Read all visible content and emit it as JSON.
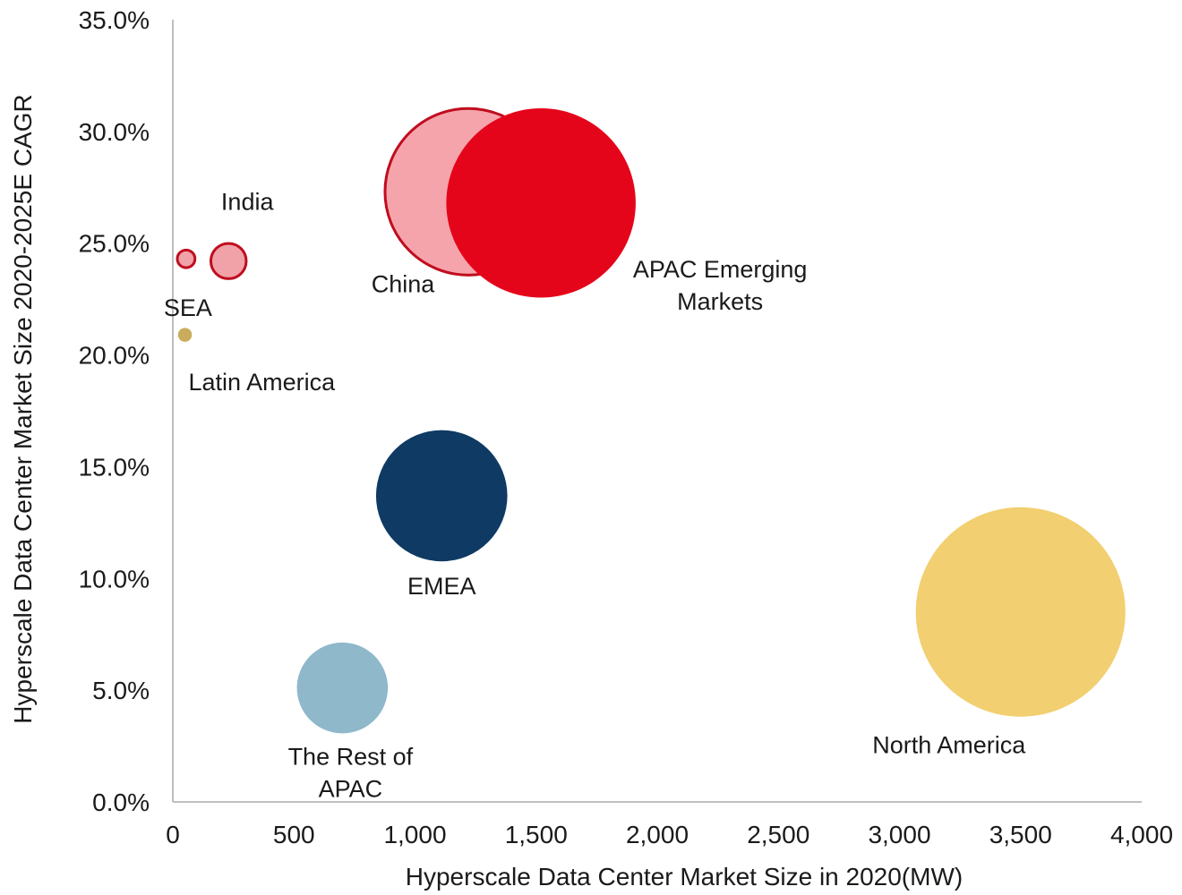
{
  "chart_data": {
    "type": "bubble",
    "xlabel": "Hyperscale Data Center Market Size in 2020(MW)",
    "ylabel": "Hyperscale Data Center Market Size 2020-2025E CAGR",
    "xlim": [
      0,
      4000
    ],
    "ylim": [
      0,
      35
    ],
    "x_ticks": [
      0,
      500,
      1000,
      1500,
      2000,
      2500,
      3000,
      3500,
      4000
    ],
    "x_tick_labels": [
      "0",
      "500",
      "1,000",
      "1,500",
      "2,000",
      "2,500",
      "3,000",
      "3,500",
      "4,000"
    ],
    "y_ticks": [
      0,
      5,
      10,
      15,
      20,
      25,
      30,
      35
    ],
    "y_tick_labels": [
      "0.0%",
      "5.0%",
      "10.0%",
      "15.0%",
      "20.0%",
      "25.0%",
      "30.0%",
      "35.0%"
    ],
    "series": [
      {
        "name": "China",
        "label_lines": [
          "China"
        ],
        "x": 1220,
        "y": 27.3,
        "size": 660,
        "color": "#ee5a67",
        "opacity": 0.55,
        "stroke": "#c00d1e",
        "label_anchor": "bottom-left"
      },
      {
        "name": "APAC Emerging Markets",
        "label_lines": [
          "APAC  Emerging",
          "Markets"
        ],
        "x": 1520,
        "y": 26.8,
        "size": 750,
        "color": "#e5051a",
        "opacity": 1,
        "stroke": "none",
        "label_anchor": "right"
      },
      {
        "name": "India",
        "label_lines": [
          "India"
        ],
        "x": 230,
        "y": 24.2,
        "size": 140,
        "color": "#f0a2a8",
        "opacity": 1,
        "stroke": "#c00d1e",
        "label_anchor": "top"
      },
      {
        "name": "SEA",
        "label_lines": [
          "SEA"
        ],
        "x": 55,
        "y": 24.3,
        "size": 70,
        "color": "#f0a2a8",
        "opacity": 1,
        "stroke": "#c00d1e",
        "label_anchor": "bottom"
      },
      {
        "name": "Latin America",
        "label_lines": [
          "Latin America"
        ],
        "x": 50,
        "y": 20.9,
        "size": 55,
        "color": "#c9ad5d",
        "opacity": 1,
        "stroke": "none",
        "label_anchor": "bottom-right"
      },
      {
        "name": "EMEA",
        "label_lines": [
          "EMEA"
        ],
        "x": 1110,
        "y": 13.7,
        "size": 520,
        "color": "#0e3a63",
        "opacity": 1,
        "stroke": "none",
        "label_anchor": "bottom"
      },
      {
        "name": "The Rest of APAC",
        "label_lines": [
          "The Rest of",
          "APAC"
        ],
        "x": 700,
        "y": 5.1,
        "size": 360,
        "color": "#8fb8cb",
        "opacity": 1,
        "stroke": "none",
        "label_anchor": "bottom"
      },
      {
        "name": "North America",
        "label_lines": [
          "North America"
        ],
        "x": 3500,
        "y": 8.5,
        "size": 830,
        "color": "#f2cf70",
        "opacity": 1,
        "stroke": "none",
        "label_anchor": "bottom-left"
      }
    ]
  }
}
